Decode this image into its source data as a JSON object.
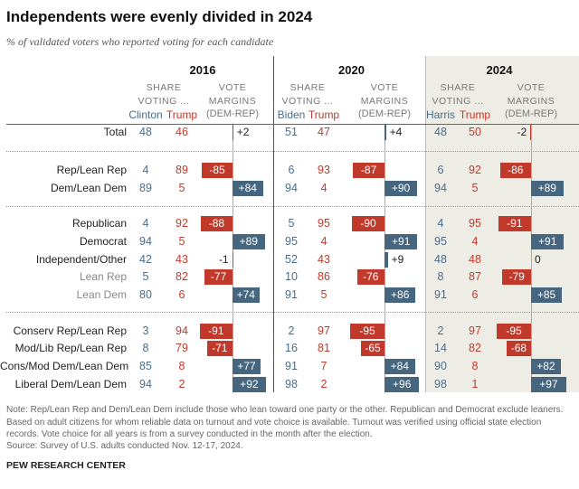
{
  "title": "Independents were evenly divided in 2024",
  "subtitle": "% of validated voters who reported voting for each candidate",
  "header": {
    "share_line1": "SHARE",
    "share_line2": "VOTING ...",
    "margin_line1": "VOTE",
    "margin_line2": "MARGINS",
    "margin_line3": "(DEM-REP)"
  },
  "colors": {
    "dem": "#466680",
    "rep": "#c0392b",
    "shade_2024": "#eeede5"
  },
  "chart_data": {
    "type": "table",
    "years": [
      {
        "year": "2016",
        "dem_candidate": "Clinton",
        "rep_candidate": "Trump"
      },
      {
        "year": "2020",
        "dem_candidate": "Biden",
        "rep_candidate": "Trump"
      },
      {
        "year": "2024",
        "dem_candidate": "Harris",
        "rep_candidate": "Trump"
      }
    ],
    "rows": [
      {
        "label": "Total",
        "group": 0,
        "values": [
          [
            48,
            46,
            "+2"
          ],
          [
            51,
            47,
            "+4"
          ],
          [
            48,
            50,
            "-2"
          ]
        ]
      },
      {
        "label": "Rep/Lean Rep",
        "group": 1,
        "values": [
          [
            4,
            89,
            "-85"
          ],
          [
            6,
            93,
            "-87"
          ],
          [
            6,
            92,
            "-86"
          ]
        ]
      },
      {
        "label": "Dem/Lean Dem",
        "group": 1,
        "values": [
          [
            89,
            5,
            "+84"
          ],
          [
            94,
            4,
            "+90"
          ],
          [
            94,
            5,
            "+89"
          ]
        ]
      },
      {
        "label": "Republican",
        "group": 2,
        "values": [
          [
            4,
            92,
            "-88"
          ],
          [
            5,
            95,
            "-90"
          ],
          [
            4,
            95,
            "-91"
          ]
        ]
      },
      {
        "label": "Democrat",
        "group": 2,
        "values": [
          [
            94,
            5,
            "+89"
          ],
          [
            95,
            4,
            "+91"
          ],
          [
            95,
            4,
            "+91"
          ]
        ]
      },
      {
        "label": "Independent/Other",
        "group": 2,
        "values": [
          [
            42,
            43,
            "-1"
          ],
          [
            52,
            43,
            "+9"
          ],
          [
            48,
            48,
            "0"
          ]
        ]
      },
      {
        "label": "Lean Rep",
        "group": 2,
        "lean": true,
        "values": [
          [
            5,
            82,
            "-77"
          ],
          [
            10,
            86,
            "-76"
          ],
          [
            8,
            87,
            "-79"
          ]
        ]
      },
      {
        "label": "Lean Dem",
        "group": 2,
        "lean": true,
        "values": [
          [
            80,
            6,
            "+74"
          ],
          [
            91,
            5,
            "+86"
          ],
          [
            91,
            6,
            "+85"
          ]
        ]
      },
      {
        "label": "Conserv Rep/Lean Rep",
        "group": 3,
        "values": [
          [
            3,
            94,
            "-91"
          ],
          [
            2,
            97,
            "-95"
          ],
          [
            2,
            97,
            "-95"
          ]
        ]
      },
      {
        "label": "Mod/Lib Rep/Lean Rep",
        "group": 3,
        "values": [
          [
            8,
            79,
            "-71"
          ],
          [
            16,
            81,
            "-65"
          ],
          [
            14,
            82,
            "-68"
          ]
        ]
      },
      {
        "label": "Cons/Mod Dem/Lean Dem",
        "group": 3,
        "values": [
          [
            85,
            8,
            "+77"
          ],
          [
            91,
            7,
            "+84"
          ],
          [
            90,
            8,
            "+82"
          ]
        ]
      },
      {
        "label": "Liberal Dem/Lean Dem",
        "group": 3,
        "values": [
          [
            94,
            2,
            "+92"
          ],
          [
            98,
            2,
            "+96"
          ],
          [
            98,
            1,
            "+97"
          ]
        ]
      }
    ]
  },
  "notes": "Note: Rep/Lean Rep and Dem/Lean Dem include those who lean toward one party or the other. Republican and Democrat exclude leaners. Based on adult citizens for whom reliable data on turnout and vote choice is available. Turnout was verified using official state election records. Vote choice for all years is from a survey conducted in the month after the election.",
  "source": "Source: Survey of U.S. adults conducted Nov. 12-17, 2024.",
  "brand": "PEW RESEARCH CENTER"
}
